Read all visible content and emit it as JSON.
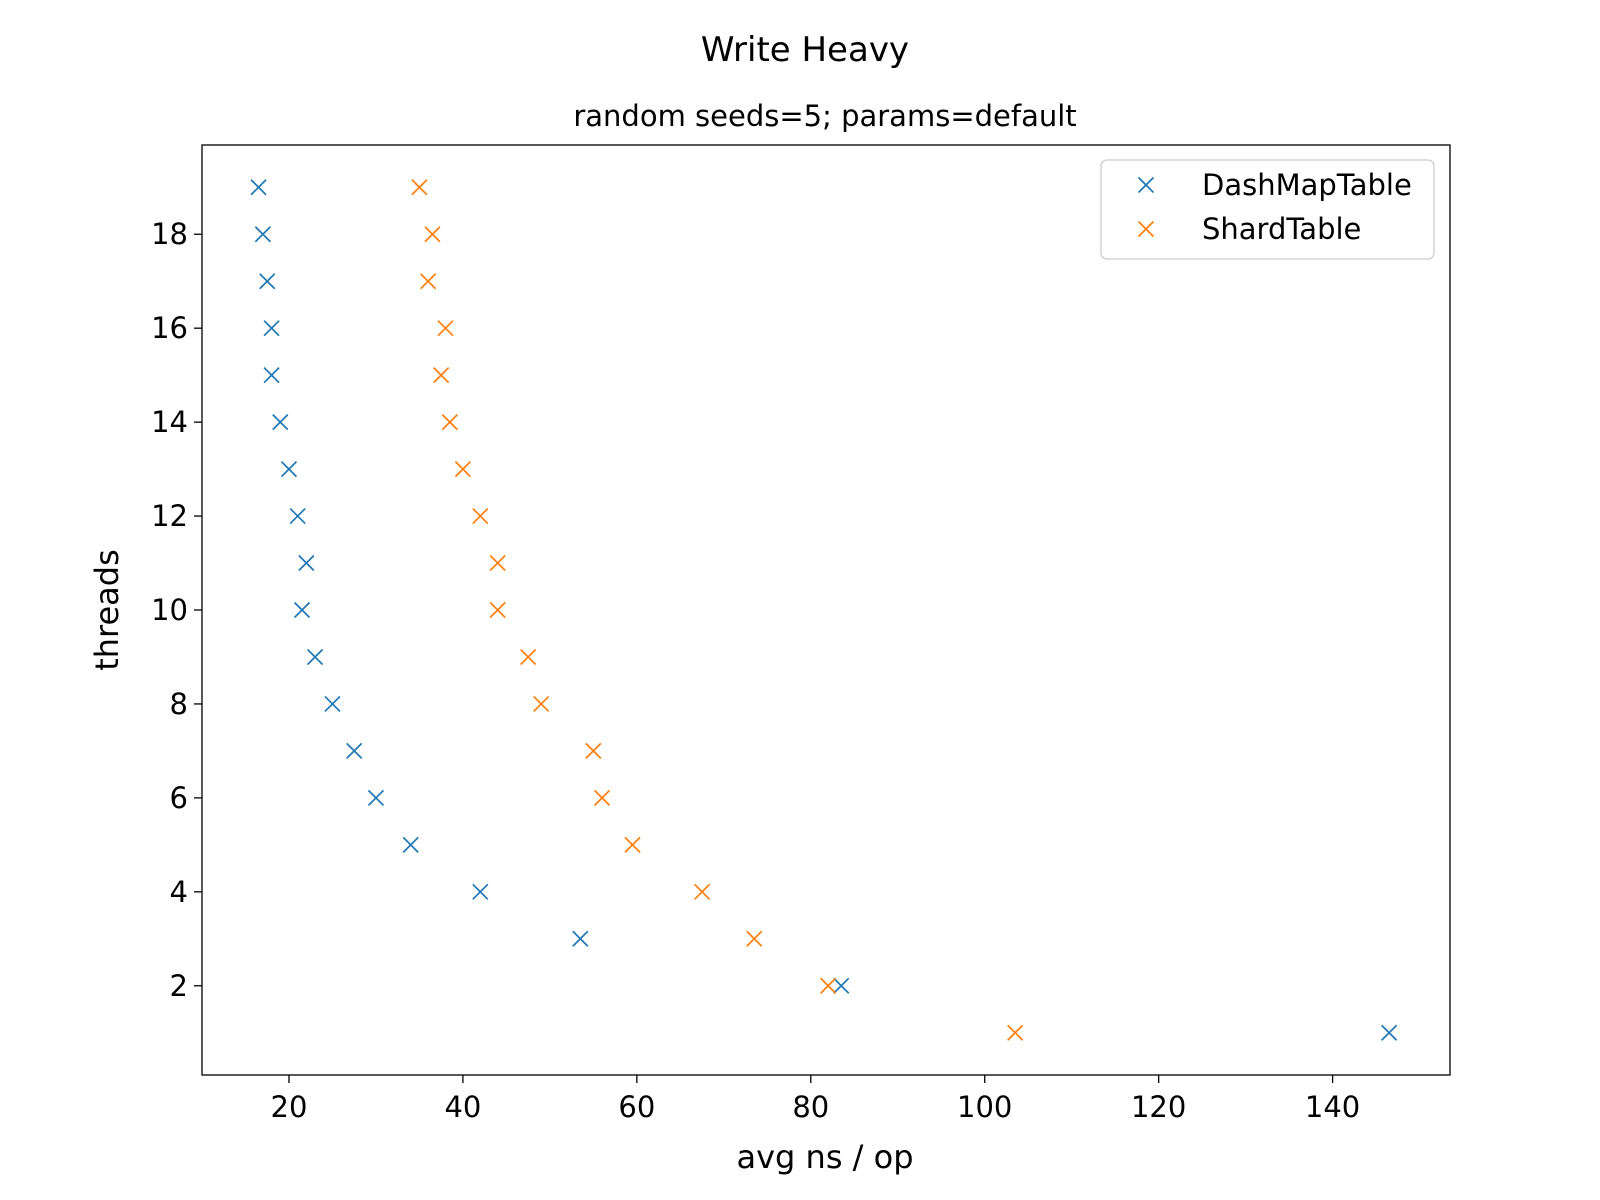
{
  "chart_data": {
    "type": "scatter",
    "title": "Write Heavy",
    "subtitle": "random seeds=5; params=default",
    "xlabel": "avg ns / op",
    "ylabel": "threads",
    "xlim": [
      10,
      153.5
    ],
    "ylim": [
      0.1,
      19.9
    ],
    "xticks": [
      20,
      40,
      60,
      80,
      100,
      120,
      140
    ],
    "yticks": [
      2,
      4,
      6,
      8,
      10,
      12,
      14,
      16,
      18
    ],
    "grid": false,
    "legend_position": "top-right",
    "marker": "x",
    "series": [
      {
        "name": "DashMapTable",
        "color": "#1f77b4",
        "points": [
          [
            146.5,
            1
          ],
          [
            83.5,
            2
          ],
          [
            53.5,
            3
          ],
          [
            42.0,
            4
          ],
          [
            34.0,
            5
          ],
          [
            30.0,
            6
          ],
          [
            27.5,
            7
          ],
          [
            25.0,
            8
          ],
          [
            23.0,
            9
          ],
          [
            21.5,
            10
          ],
          [
            22.0,
            11
          ],
          [
            21.0,
            12
          ],
          [
            20.0,
            13
          ],
          [
            19.0,
            14
          ],
          [
            18.0,
            15
          ],
          [
            18.0,
            16
          ],
          [
            17.5,
            17
          ],
          [
            17.0,
            18
          ],
          [
            16.5,
            19
          ]
        ]
      },
      {
        "name": "ShardTable",
        "color": "#ff7f0e",
        "points": [
          [
            103.5,
            1
          ],
          [
            82.0,
            2
          ],
          [
            73.5,
            3
          ],
          [
            67.5,
            4
          ],
          [
            59.5,
            5
          ],
          [
            56.0,
            6
          ],
          [
            55.0,
            7
          ],
          [
            49.0,
            8
          ],
          [
            47.5,
            9
          ],
          [
            44.0,
            10
          ],
          [
            44.0,
            11
          ],
          [
            42.0,
            12
          ],
          [
            40.0,
            13
          ],
          [
            38.5,
            14
          ],
          [
            37.5,
            15
          ],
          [
            38.0,
            16
          ],
          [
            36.0,
            17
          ],
          [
            36.5,
            18
          ],
          [
            35.0,
            19
          ]
        ]
      }
    ]
  }
}
